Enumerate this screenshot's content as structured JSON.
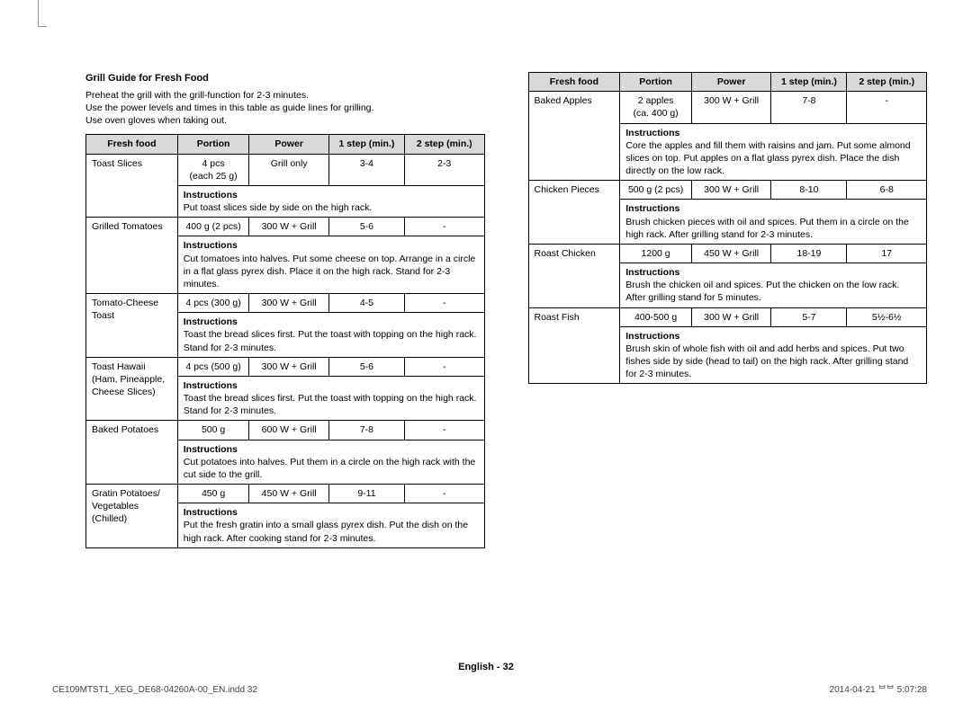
{
  "title": "Grill Guide for Fresh Food",
  "intro": [
    "Preheat the grill with the grill-function for 2-3 minutes.",
    "Use the power levels and times in this table as guide lines for grilling.",
    "Use oven gloves when taking out."
  ],
  "headers": {
    "c0": "Fresh food",
    "c1": "Portion",
    "c2": "Power",
    "c3": "1 step (min.)",
    "c4": "2 step (min.)"
  },
  "instructions_label": "Instructions",
  "left": [
    {
      "name": "Toast Slices",
      "portion": "4 pcs\n(each 25 g)",
      "power": "Grill only",
      "s1": "3-4",
      "s2": "2-3",
      "instr": "Put toast slices side by side on the high rack."
    },
    {
      "name": "Grilled Tomatoes",
      "portion": "400 g (2 pcs)",
      "power": "300 W + Grill",
      "s1": "5-6",
      "s2": "-",
      "instr": "Cut tomatoes into halves. Put some cheese on top. Arrange in a circle in a flat glass pyrex dish. Place it on the high rack. Stand for 2-3 minutes."
    },
    {
      "name": "Tomato-Cheese Toast",
      "portion": "4 pcs (300 g)",
      "power": "300 W + Grill",
      "s1": "4-5",
      "s2": "-",
      "instr": "Toast the bread slices first. Put the toast with topping on the high rack. Stand for 2-3 minutes."
    },
    {
      "name": "Toast Hawaii (Ham, Pineapple, Cheese Slices)",
      "portion": "4 pcs (500 g)",
      "power": "300 W + Grill",
      "s1": "5-6",
      "s2": "-",
      "instr": "Toast the bread slices first. Put the toast with topping on the high rack. Stand for 2-3 minutes."
    },
    {
      "name": "Baked Potatoes",
      "portion": "500 g",
      "power": "600 W + Grill",
      "s1": "7-8",
      "s2": "-",
      "instr": "Cut potatoes into halves. Put them in a circle on the high rack with the cut side to the grill."
    },
    {
      "name": "Gratin Potatoes/ Vegetables (Chilled)",
      "portion": "450 g",
      "power": "450 W + Grill",
      "s1": "9-11",
      "s2": "-",
      "instr": "Put the fresh gratin into a small glass pyrex dish. Put the dish on the high rack. After cooking stand for 2-3 minutes."
    }
  ],
  "right": [
    {
      "name": "Baked Apples",
      "portion": "2 apples\n(ca. 400 g)",
      "power": "300 W + Grill",
      "s1": "7-8",
      "s2": "-",
      "instr": "Core the apples and fill them with raisins and jam. Put some almond slices on top. Put apples on a flat glass pyrex dish. Place the dish directly on the low rack."
    },
    {
      "name": "Chicken Pieces",
      "portion": "500 g (2 pcs)",
      "power": "300 W + Grill",
      "s1": "8-10",
      "s2": "6-8",
      "instr": "Brush chicken pieces with oil and spices. Put them in a circle on the high rack. After grilling stand for 2-3 minutes."
    },
    {
      "name": "Roast Chicken",
      "portion": "1200 g",
      "power": "450 W + Grill",
      "s1": "18-19",
      "s2": "17",
      "instr": "Brush the chicken oil and spices. Put the chicken on the low rack. After grilling stand for 5 minutes."
    },
    {
      "name": "Roast Fish",
      "portion": "400-500 g",
      "power": "300 W + Grill",
      "s1": "5-7",
      "s2": "5½-6½",
      "instr": "Brush skin of whole fish with oil and add herbs and spices. Put two fishes side by side (head to tail) on the high rack. After grilling stand for 2-3 minutes."
    }
  ],
  "footer": {
    "lang": "English",
    "page": "32",
    "file": "CE109MTST1_XEG_DE68-04260A-00_EN.indd   32",
    "ts": "2014-04-21   ᄇᄇ 5:07:28"
  }
}
